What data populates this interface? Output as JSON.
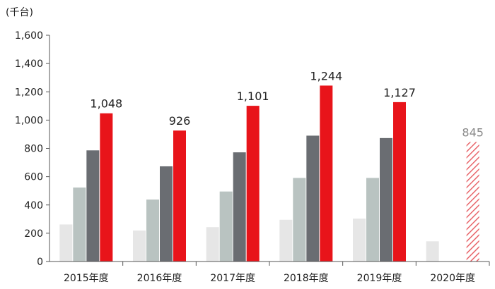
{
  "chart_data": {
    "type": "bar",
    "unit_label": "(千台)",
    "categories": [
      "2015年度",
      "2016年度",
      "2017年度",
      "2018年度",
      "2019年度",
      "2020年度"
    ],
    "ylim": [
      0,
      1600
    ],
    "yticks": [
      0,
      200,
      400,
      600,
      800,
      1000,
      1200,
      1400,
      1600
    ],
    "ytick_labels": [
      "0",
      "200",
      "400",
      "600",
      "800",
      "1,000",
      "1,200",
      "1,400",
      "1,600"
    ],
    "series": [
      {
        "values": [
          262,
          219,
          243,
          295,
          303,
          143
        ],
        "color": "#e6e6e6"
      },
      {
        "values": [
          523,
          438,
          495,
          591,
          591,
          null
        ],
        "color": "#b9c3c1"
      },
      {
        "values": [
          786,
          673,
          772,
          890,
          873,
          null
        ],
        "color": "#6a6d72"
      },
      {
        "values": [
          1048,
          926,
          1101,
          1244,
          1127,
          845
        ],
        "color": "#e8141a",
        "projected_index": 5,
        "projected_color": "#e8656a"
      }
    ],
    "data_labels": [
      "1,048",
      "926",
      "1,101",
      "1,244",
      "1,127",
      "845"
    ],
    "grid": false,
    "legend": "none"
  }
}
